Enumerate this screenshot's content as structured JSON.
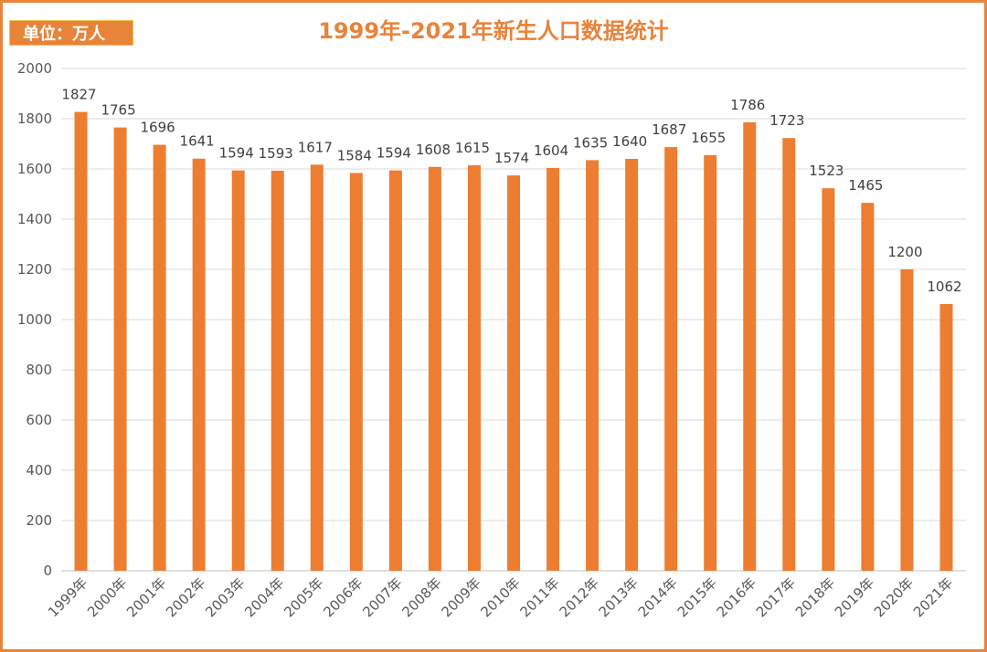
{
  "chart_data": {
    "type": "bar",
    "title": "1999年-2021年新生人口数据统计",
    "unit_label": "单位：万人",
    "categories": [
      "1999年",
      "2000年",
      "2001年",
      "2002年",
      "2003年",
      "2004年",
      "2005年",
      "2006年",
      "2007年",
      "2008年",
      "2009年",
      "2010年",
      "2011年",
      "2012年",
      "2013年",
      "2014年",
      "2015年",
      "2016年",
      "2017年",
      "2018年",
      "2019年",
      "2020年",
      "2021年"
    ],
    "values": [
      1827,
      1765,
      1696,
      1641,
      1594,
      1593,
      1617,
      1584,
      1594,
      1608,
      1615,
      1574,
      1604,
      1635,
      1640,
      1687,
      1655,
      1786,
      1723,
      1523,
      1465,
      1200,
      1062
    ],
    "ylim": [
      0,
      2000
    ],
    "yticks": [
      0,
      200,
      400,
      600,
      800,
      1000,
      1200,
      1400,
      1600,
      1800,
      2000
    ],
    "grid": true,
    "bar_color": "#ED7D31",
    "border_color": "#E8833A"
  }
}
